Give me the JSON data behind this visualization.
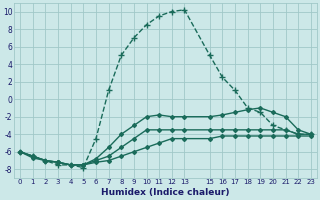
{
  "xlabel": "Humidex (Indice chaleur)",
  "background_color": "#cce8e8",
  "grid_color": "#a0c8c8",
  "line_color": "#1a6b5a",
  "xlim": [
    -0.5,
    23.5
  ],
  "ylim": [
    -9,
    11
  ],
  "xticks": [
    0,
    1,
    2,
    3,
    4,
    5,
    6,
    7,
    8,
    9,
    10,
    11,
    12,
    13,
    15,
    16,
    17,
    18,
    19,
    20,
    21,
    22,
    23
  ],
  "yticks": [
    -8,
    -6,
    -4,
    -2,
    0,
    2,
    4,
    6,
    8,
    10
  ],
  "series": [
    {
      "x": [
        0,
        1,
        2,
        3,
        4,
        5,
        6,
        7,
        8,
        9,
        10,
        11,
        12,
        13,
        15,
        16,
        17,
        18,
        19,
        20,
        21,
        22,
        23
      ],
      "y": [
        -6,
        -6.5,
        -7,
        -7.5,
        -7.5,
        -7.8,
        -4.5,
        1,
        5,
        7,
        8.5,
        9.5,
        10,
        10.2,
        5,
        2.5,
        1,
        -1,
        -1.5,
        -3,
        -3.5,
        -4,
        -4
      ],
      "linestyle": "--",
      "marker": "+",
      "markersize": 4,
      "linewidth": 1.0
    },
    {
      "x": [
        0,
        1,
        2,
        3,
        4,
        5,
        6,
        7,
        8,
        9,
        10,
        11,
        12,
        13,
        15,
        16,
        17,
        18,
        19,
        20,
        21,
        22,
        23
      ],
      "y": [
        -6,
        -6.7,
        -7,
        -7.2,
        -7.5,
        -7.5,
        -7.2,
        -7.0,
        -6.5,
        -6.0,
        -5.5,
        -5.0,
        -4.5,
        -4.5,
        -4.5,
        -4.2,
        -4.2,
        -4.2,
        -4.2,
        -4.2,
        -4.2,
        -4.2,
        -4.2
      ],
      "linestyle": "-",
      "marker": "D",
      "markersize": 2,
      "linewidth": 1.0
    },
    {
      "x": [
        0,
        1,
        2,
        3,
        4,
        5,
        6,
        7,
        8,
        9,
        10,
        11,
        12,
        13,
        15,
        16,
        17,
        18,
        19,
        20,
        21,
        22,
        23
      ],
      "y": [
        -6,
        -6.5,
        -7,
        -7.2,
        -7.5,
        -7.5,
        -7.0,
        -6.5,
        -5.5,
        -4.5,
        -3.5,
        -3.5,
        -3.5,
        -3.5,
        -3.5,
        -3.5,
        -3.5,
        -3.5,
        -3.5,
        -3.5,
        -3.5,
        -4,
        -4
      ],
      "linestyle": "-",
      "marker": "D",
      "markersize": 2,
      "linewidth": 1.0
    },
    {
      "x": [
        0,
        1,
        2,
        3,
        4,
        5,
        6,
        7,
        8,
        9,
        10,
        11,
        12,
        13,
        15,
        16,
        17,
        18,
        19,
        20,
        21,
        22,
        23
      ],
      "y": [
        -6,
        -6.5,
        -7,
        -7.2,
        -7.5,
        -7.5,
        -6.8,
        -5.5,
        -4.0,
        -3.0,
        -2.0,
        -1.8,
        -2.0,
        -2.0,
        -2.0,
        -1.8,
        -1.5,
        -1.2,
        -1.0,
        -1.5,
        -2.0,
        -3.5,
        -4
      ],
      "linestyle": "-",
      "marker": "D",
      "markersize": 2,
      "linewidth": 1.0
    }
  ]
}
